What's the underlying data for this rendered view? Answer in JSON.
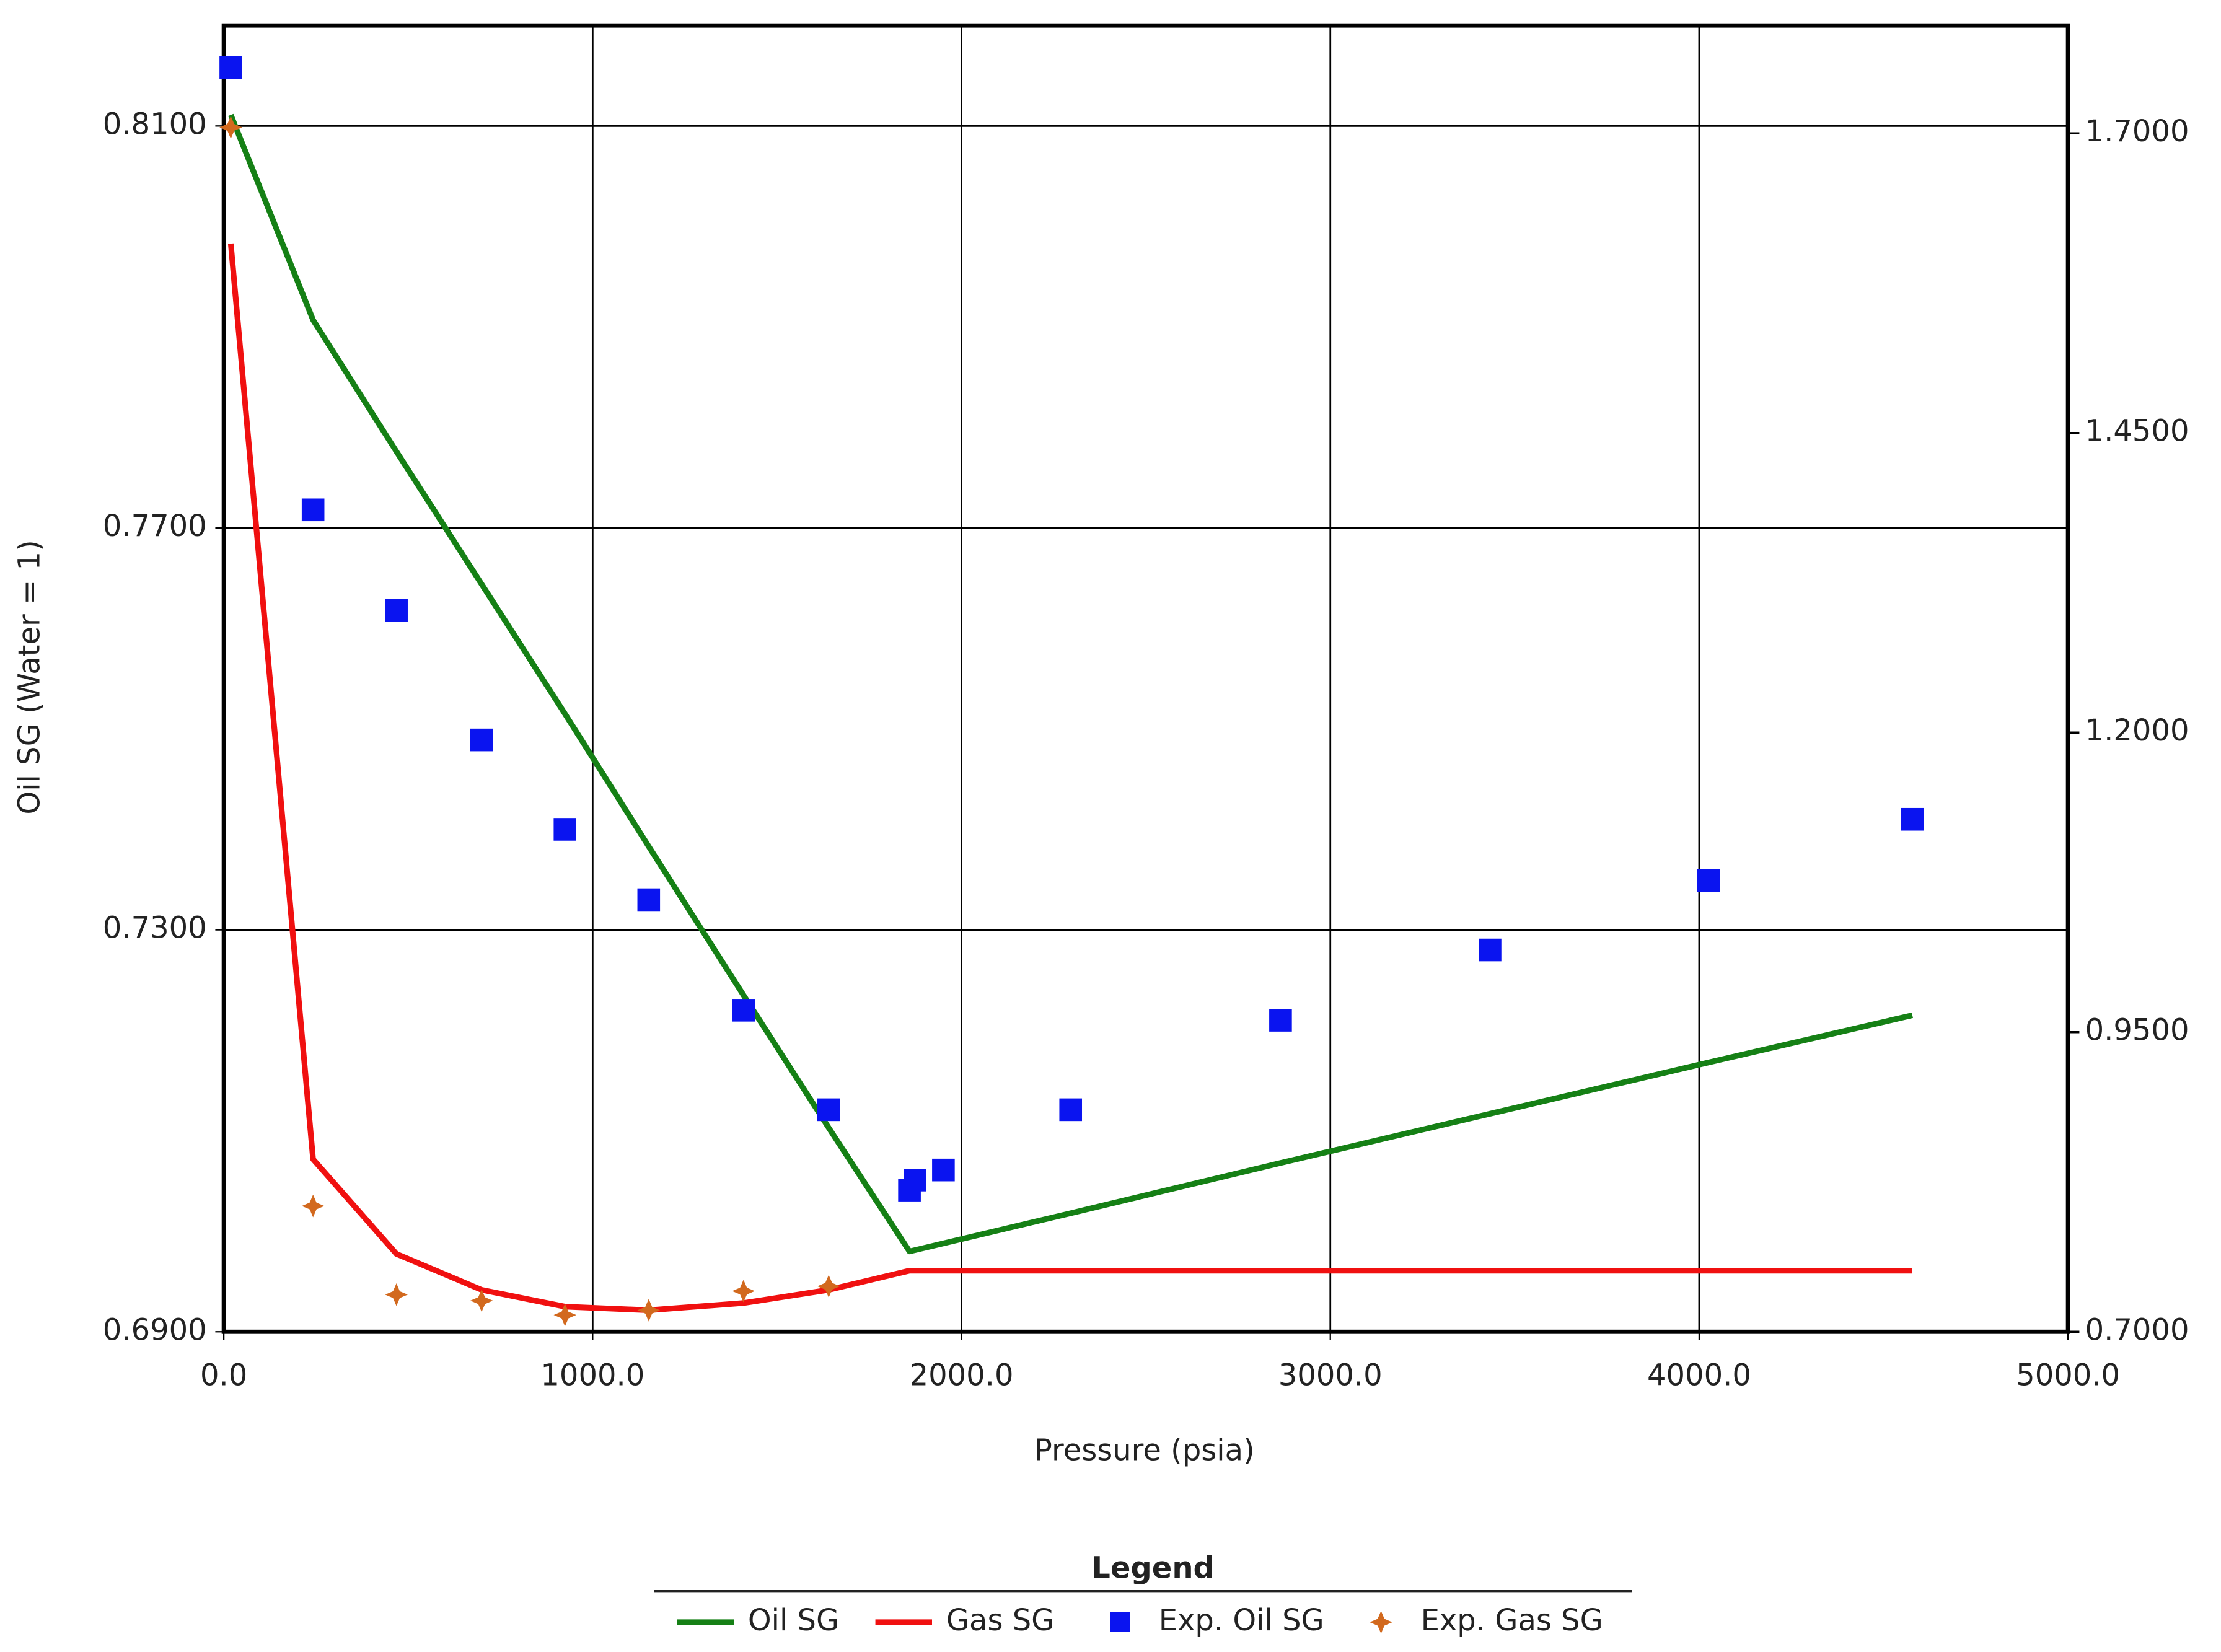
{
  "chart_data": {
    "type": "line",
    "x_label": "Pressure (psia)",
    "y_label": "Oil SG (Water = 1)",
    "legend_title": "Legend",
    "legend": "bottom",
    "grid": true,
    "xlim": [
      0,
      5000
    ],
    "xticks": [
      {
        "value": 0,
        "label": "0.0"
      },
      {
        "value": 1000,
        "label": "1000.0"
      },
      {
        "value": 2000,
        "label": "2000.0"
      },
      {
        "value": 3000,
        "label": "3000.0"
      },
      {
        "value": 4000,
        "label": "4000.0"
      },
      {
        "value": 5000,
        "label": "5000.0"
      }
    ],
    "ylim": [
      0.69,
      0.82
    ],
    "yticks": [
      {
        "value": 0.69,
        "label": "0.6900"
      },
      {
        "value": 0.73,
        "label": "0.7300"
      },
      {
        "value": 0.77,
        "label": "0.7700"
      },
      {
        "value": 0.81,
        "label": "0.8100"
      }
    ],
    "y2lim": [
      0.7,
      1.79
    ],
    "y2ticks": [
      {
        "value": 0.7,
        "label": "0.7000"
      },
      {
        "value": 0.95,
        "label": "0.9500"
      },
      {
        "value": 1.2,
        "label": "1.2000"
      },
      {
        "value": 1.45,
        "label": "1.4500"
      },
      {
        "value": 1.7,
        "label": "1.7000"
      }
    ],
    "series": [
      {
        "name": "Oil SG",
        "color": "#158015",
        "style": "line",
        "x": [
          19,
          242,
          468,
          699,
          925,
          1152,
          1409,
          1640,
          1859,
          2296,
          2865,
          3433,
          4025,
          4578
        ],
        "values": [
          0.8111,
          0.7907,
          0.7776,
          0.7644,
          0.7515,
          0.7383,
          0.7235,
          0.7103,
          0.698,
          0.7018,
          0.7068,
          0.7117,
          0.7168,
          0.7215
        ]
      },
      {
        "name": "Gas SG",
        "color": "#f01010",
        "style": "line",
        "axis": "y2",
        "x": [
          19,
          242,
          468,
          699,
          925,
          1152,
          1409,
          1640,
          1859,
          2296,
          2865,
          3433,
          4025,
          4578
        ],
        "values": [
          1.608,
          0.844,
          0.765,
          0.735,
          0.721,
          0.718,
          0.724,
          0.735,
          0.751,
          0.751,
          0.751,
          0.751,
          0.751,
          0.751
        ]
      },
      {
        "name": "Exp. Oil SG",
        "color": "#0a14f0",
        "style": "square",
        "x": [
          19,
          242,
          468,
          699,
          925,
          1152,
          1409,
          1640,
          1859,
          1874,
          1951,
          2296,
          2865,
          3433,
          4025,
          4578
        ],
        "values": [
          0.8158,
          0.7718,
          0.7618,
          0.7489,
          0.74,
          0.733,
          0.722,
          0.7121,
          0.7041,
          0.7051,
          0.7061,
          0.7121,
          0.721,
          0.728,
          0.7349,
          0.741
        ]
      },
      {
        "name": "Exp. Gas SG",
        "color": "#d2691e",
        "style": "star",
        "axis": "y2",
        "x": [
          19,
          242,
          468,
          699,
          925,
          1152,
          1409,
          1640
        ],
        "values": [
          1.705,
          0.805,
          0.731,
          0.726,
          0.714,
          0.718,
          0.734,
          0.738
        ]
      }
    ]
  }
}
